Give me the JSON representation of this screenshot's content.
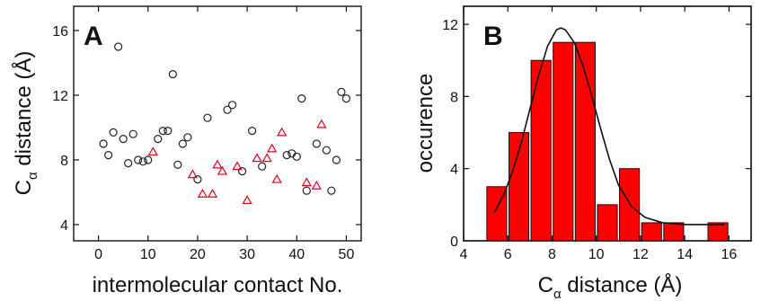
{
  "chart_data": [
    {
      "panel": "A",
      "type": "scatter",
      "xlabel": "intermolecular contact No.",
      "ylabel": "C_α distance (Å)",
      "ylabel_main": "C",
      "ylabel_sub": "α",
      "ylabel_rest": " distance (Å)",
      "xlim": [
        -5,
        53
      ],
      "ylim": [
        3,
        17.5
      ],
      "xticks": [
        0,
        10,
        20,
        30,
        40,
        50
      ],
      "yticks": [
        4,
        8,
        12,
        16
      ],
      "series": [
        {
          "marker": "circle",
          "color": "#222222",
          "x": [
            1,
            2,
            3,
            4,
            5,
            6,
            7,
            8,
            9,
            10,
            12,
            13,
            14,
            15,
            16,
            17,
            18,
            20,
            22,
            26,
            27,
            29,
            31,
            33,
            38,
            39,
            40,
            41,
            42,
            44,
            46,
            47,
            48,
            49,
            50
          ],
          "y": [
            9.0,
            8.3,
            9.7,
            15.0,
            9.3,
            7.8,
            9.6,
            8.0,
            7.9,
            8.0,
            9.3,
            9.8,
            9.8,
            13.3,
            7.7,
            9.0,
            9.4,
            6.8,
            10.6,
            11.1,
            11.4,
            7.3,
            9.8,
            7.6,
            8.3,
            8.4,
            8.2,
            11.8,
            6.1,
            9.0,
            8.6,
            6.1,
            8.0,
            12.2,
            11.8
          ]
        },
        {
          "marker": "triangle",
          "color": "#e0001b",
          "x": [
            11,
            19,
            21,
            23,
            24,
            25,
            28,
            30,
            32,
            34,
            35,
            36,
            37,
            42,
            44,
            45
          ],
          "y": [
            8.5,
            7.1,
            5.9,
            5.9,
            7.7,
            7.3,
            7.6,
            5.5,
            8.1,
            8.1,
            8.7,
            6.8,
            9.7,
            6.6,
            6.4,
            10.2
          ]
        }
      ]
    },
    {
      "panel": "B",
      "type": "bar",
      "xlabel": "C_α distance (Å)",
      "xlabel_main": "C",
      "xlabel_sub": "α",
      "xlabel_rest": " distance (Å)",
      "ylabel": "occurence",
      "xlim": [
        4,
        17
      ],
      "ylim": [
        0,
        13
      ],
      "xticks": [
        4,
        6,
        8,
        10,
        12,
        14,
        16
      ],
      "yticks": [
        0,
        4,
        8,
        12
      ],
      "bar_color": "#ff0000",
      "bin_width": 0.9,
      "bins": [
        {
          "center": 5.5,
          "count": 3
        },
        {
          "center": 6.5,
          "count": 6
        },
        {
          "center": 7.5,
          "count": 10
        },
        {
          "center": 8.5,
          "count": 11
        },
        {
          "center": 9.5,
          "count": 11
        },
        {
          "center": 10.5,
          "count": 2
        },
        {
          "center": 11.5,
          "count": 4
        },
        {
          "center": 12.5,
          "count": 1
        },
        {
          "center": 13.5,
          "count": 1
        },
        {
          "center": 15.5,
          "count": 1
        }
      ],
      "fit": {
        "type": "gaussian",
        "color": "#111111",
        "x": [
          5.4,
          5.8,
          6.2,
          6.6,
          7.0,
          7.4,
          7.8,
          8.2,
          8.4,
          8.6,
          9.0,
          9.4,
          9.8,
          10.2,
          10.6,
          11.0,
          11.6,
          12.2,
          13.0,
          14.0,
          15.0,
          15.8
        ],
        "y": [
          1.6,
          2.5,
          3.8,
          5.4,
          7.3,
          9.2,
          10.8,
          11.7,
          11.8,
          11.7,
          11.0,
          9.7,
          8.0,
          6.2,
          4.5,
          3.1,
          1.9,
          1.3,
          1.0,
          0.9,
          0.9,
          0.9
        ]
      }
    }
  ]
}
